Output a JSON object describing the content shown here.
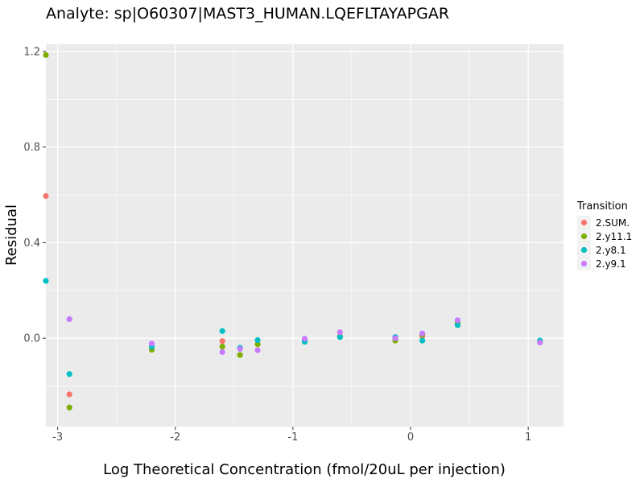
{
  "chart_data": {
    "type": "scatter",
    "title": "Analyte: sp|O60307|MAST3_HUMAN.LQEFLTAYAPGAR",
    "xlabel": "Log Theoretical Concentration (fmol/20uL per injection)",
    "ylabel": "Residual",
    "xlim": [
      -3.1,
      1.3
    ],
    "ylim": [
      -0.37,
      1.23
    ],
    "xticks": [
      -3,
      -2,
      -1,
      0,
      1
    ],
    "yticks": [
      0.0,
      0.4,
      0.8,
      1.2
    ],
    "xtick_labels": [
      "-3",
      "-2",
      "-1",
      "0",
      "1"
    ],
    "ytick_labels": [
      "0.0",
      "0.4",
      "0.8",
      "1.2"
    ],
    "grid": true,
    "legend": {
      "title": "Transition",
      "position": "right"
    },
    "series": [
      {
        "name": "2.SUM.",
        "color": "#F8766D",
        "points": [
          {
            "x": -3.1,
            "y": 0.595
          },
          {
            "x": -2.9,
            "y": -0.235
          },
          {
            "x": -1.6,
            "y": -0.012
          },
          {
            "x": 0.1,
            "y": 0.008
          }
        ]
      },
      {
        "name": "2.y11.1",
        "color": "#7CAE00",
        "points": [
          {
            "x": -3.1,
            "y": 1.185
          },
          {
            "x": -2.9,
            "y": -0.29
          },
          {
            "x": -2.2,
            "y": -0.048
          },
          {
            "x": -1.6,
            "y": -0.035
          },
          {
            "x": -1.45,
            "y": -0.07
          },
          {
            "x": -1.3,
            "y": -0.025
          },
          {
            "x": -0.9,
            "y": -0.01
          },
          {
            "x": -0.6,
            "y": 0.008
          },
          {
            "x": -0.13,
            "y": -0.01
          },
          {
            "x": 0.1,
            "y": 0.015
          },
          {
            "x": 0.4,
            "y": 0.065
          },
          {
            "x": 1.1,
            "y": -0.015
          }
        ]
      },
      {
        "name": "2.y8.1",
        "color": "#00BFC4",
        "points": [
          {
            "x": -3.1,
            "y": 0.24
          },
          {
            "x": -2.9,
            "y": -0.15
          },
          {
            "x": -2.2,
            "y": -0.035
          },
          {
            "x": -1.6,
            "y": 0.03
          },
          {
            "x": -1.45,
            "y": -0.04
          },
          {
            "x": -1.3,
            "y": -0.008
          },
          {
            "x": -0.9,
            "y": -0.015
          },
          {
            "x": -0.6,
            "y": 0.005
          },
          {
            "x": -0.13,
            "y": 0.005
          },
          {
            "x": 0.1,
            "y": -0.01
          },
          {
            "x": 0.4,
            "y": 0.055
          },
          {
            "x": 1.1,
            "y": -0.01
          }
        ]
      },
      {
        "name": "2.y9.1",
        "color": "#C77CFF",
        "points": [
          {
            "x": -2.9,
            "y": 0.08
          },
          {
            "x": -2.2,
            "y": -0.022
          },
          {
            "x": -1.6,
            "y": -0.058
          },
          {
            "x": -1.45,
            "y": -0.045
          },
          {
            "x": -1.3,
            "y": -0.05
          },
          {
            "x": -0.9,
            "y": -0.002
          },
          {
            "x": -0.6,
            "y": 0.025
          },
          {
            "x": -0.13,
            "y": 0.0
          },
          {
            "x": 0.1,
            "y": 0.02
          },
          {
            "x": 0.4,
            "y": 0.075
          },
          {
            "x": 1.1,
            "y": -0.018
          }
        ]
      }
    ]
  }
}
